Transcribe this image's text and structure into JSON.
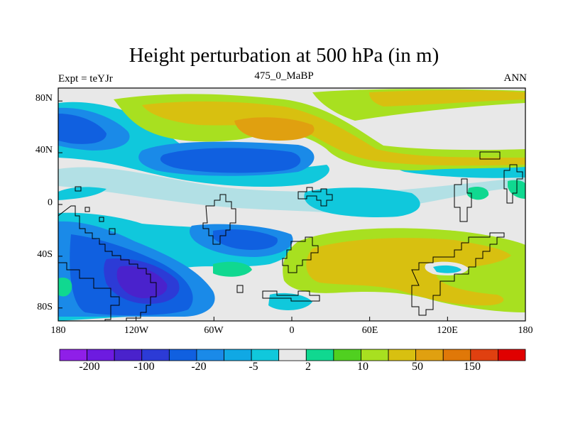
{
  "chart_data": {
    "type": "heatmap",
    "title": "Height perturbation at 500 hPa (in m)",
    "subtitle_left": "Expt = teYJr",
    "subtitle_center": "475_0_MaBP",
    "subtitle_right": "ANN",
    "x_axis": {
      "ticks": [
        "180",
        "120W",
        "60W",
        "0",
        "60E",
        "120E",
        "180"
      ],
      "range": [
        -180,
        180
      ]
    },
    "y_axis": {
      "ticks": [
        "80N",
        "40N",
        "0",
        "40S",
        "80S"
      ],
      "range": [
        -90,
        90
      ]
    },
    "colorbar": {
      "colors": [
        "#8f1fe8",
        "#6d1be0",
        "#4a22cc",
        "#2c3bd6",
        "#1060e0",
        "#1a8ae8",
        "#10a8e4",
        "#10c8dc",
        "#e8e8e8",
        "#10d890",
        "#50d020",
        "#a8e020",
        "#d8c010",
        "#e0a010",
        "#e07808",
        "#e04010",
        "#e00000"
      ],
      "tick_labels": [
        "-200",
        "-100",
        "-20",
        "-5",
        "2",
        "10",
        "50",
        "150"
      ]
    },
    "field_regions": [
      {
        "lon": -120,
        "lat": -60,
        "value": -110
      },
      {
        "lon": -60,
        "lat": -50,
        "value": -25
      },
      {
        "lon": -60,
        "lat": 40,
        "value": -25
      },
      {
        "lon": -170,
        "lat": 60,
        "value": -25
      },
      {
        "lon": 20,
        "lat": 70,
        "value": 55
      },
      {
        "lon": 30,
        "lat": 70,
        "value": 60
      },
      {
        "lon": 80,
        "lat": 35,
        "value": 50
      },
      {
        "lon": 140,
        "lat": 40,
        "value": 30
      },
      {
        "lon": 50,
        "lat": -55,
        "value": 45
      },
      {
        "lon": 135,
        "lat": -40,
        "value": 40
      },
      {
        "lon": 100,
        "lat": 15,
        "value": -8
      },
      {
        "lon": -150,
        "lat": 20,
        "value": -8
      },
      {
        "lon": 170,
        "lat": -55,
        "value": 20
      }
    ]
  }
}
